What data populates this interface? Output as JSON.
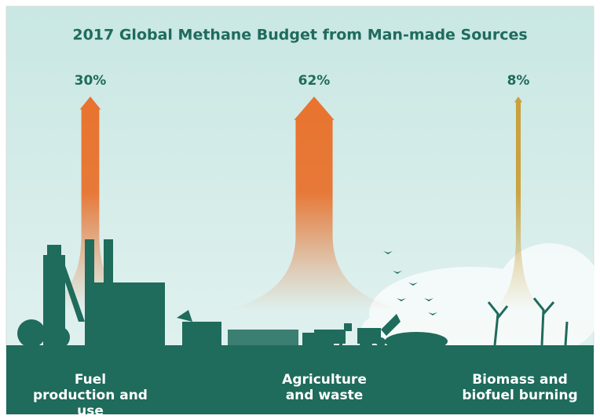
{
  "chart_data": {
    "type": "arrow",
    "title": "2017 Global Methane Budget from Man-made Sources",
    "categories": [
      "Fuel production and use",
      "Agriculture and waste",
      "Biomass and biofuel burning"
    ],
    "values": [
      30,
      62,
      8
    ],
    "value_labels": [
      "30%",
      "62%",
      "8%"
    ],
    "colors": [
      "#e8732f",
      "#e8732f",
      "#c9a03a"
    ]
  }
}
